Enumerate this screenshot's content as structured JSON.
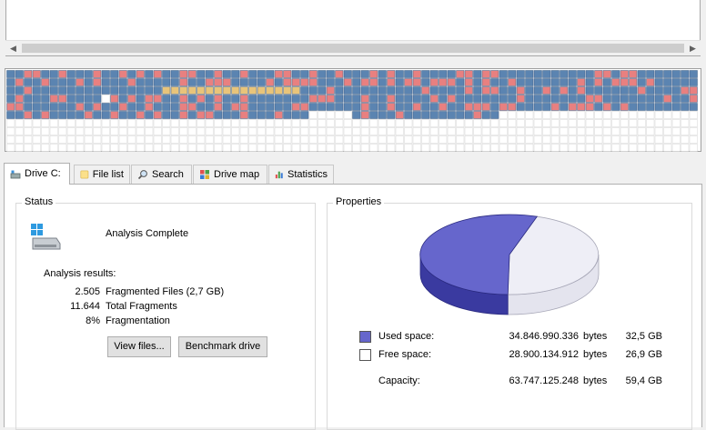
{
  "tabs": [
    {
      "label": "Drive C:",
      "icon": "drive-icon"
    },
    {
      "label": "File list",
      "icon": "folder-icon"
    },
    {
      "label": "Search",
      "icon": "search-icon"
    },
    {
      "label": "Drive map",
      "icon": "drive-map-icon"
    },
    {
      "label": "Statistics",
      "icon": "statistics-icon"
    }
  ],
  "status": {
    "title": "Status",
    "message": "Analysis Complete",
    "results_label": "Analysis results:",
    "results": [
      {
        "value": "2.505",
        "label": "Fragmented Files (2,7 GB)"
      },
      {
        "value": "11.644",
        "label": "Total Fragments"
      },
      {
        "value": "8%",
        "label": "Fragmentation"
      }
    ],
    "view_files_button": "View files...",
    "benchmark_button": "Benchmark drive"
  },
  "properties": {
    "title": "Properties",
    "used": {
      "label": "Used space:",
      "bytes": "34.846.990.336",
      "unit": "bytes",
      "size": "32,5 GB",
      "color": "#6666cc"
    },
    "free": {
      "label": "Free space:",
      "bytes": "28.900.134.912",
      "unit": "bytes",
      "size": "26,9 GB",
      "color": "#ffffff"
    },
    "capacity": {
      "label": "Capacity:",
      "bytes": "63.747.125.248",
      "unit": "bytes",
      "size": "59,4 GB"
    },
    "used_fraction": 0.547
  },
  "colors": {
    "fragmented": "#e88080",
    "contiguous": "#5b84b1",
    "system": "#e8c47a",
    "empty": "#ffffff"
  }
}
